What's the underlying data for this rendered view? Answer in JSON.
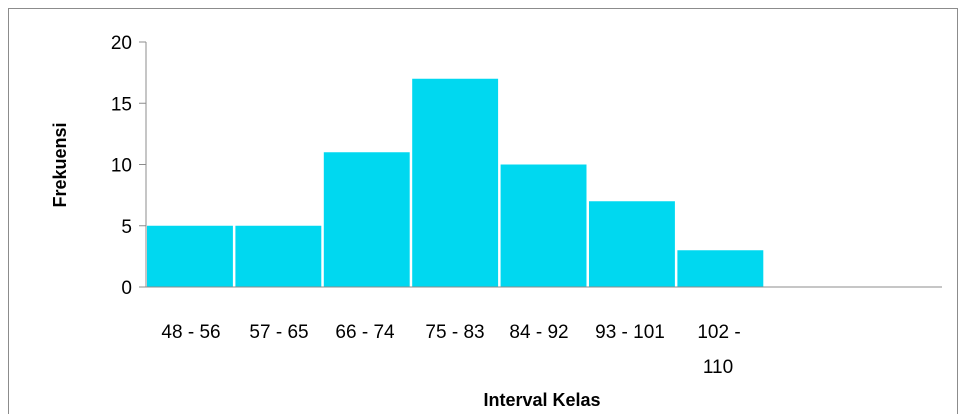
{
  "chart_data": {
    "type": "bar",
    "categories": [
      "48 - 56",
      "57 - 65",
      "66 - 74",
      "75 - 83",
      "84 - 92",
      "93 - 101",
      "102 - 110"
    ],
    "values": [
      5,
      5,
      11,
      17,
      10,
      7,
      3
    ],
    "xlabel": "Interval Kelas",
    "ylabel": "Frekuensi",
    "ylim": [
      0,
      20
    ],
    "yticks": [
      0,
      5,
      10,
      15,
      20
    ],
    "bar_color": "#00d8f0",
    "grid": false,
    "legend": "none"
  }
}
